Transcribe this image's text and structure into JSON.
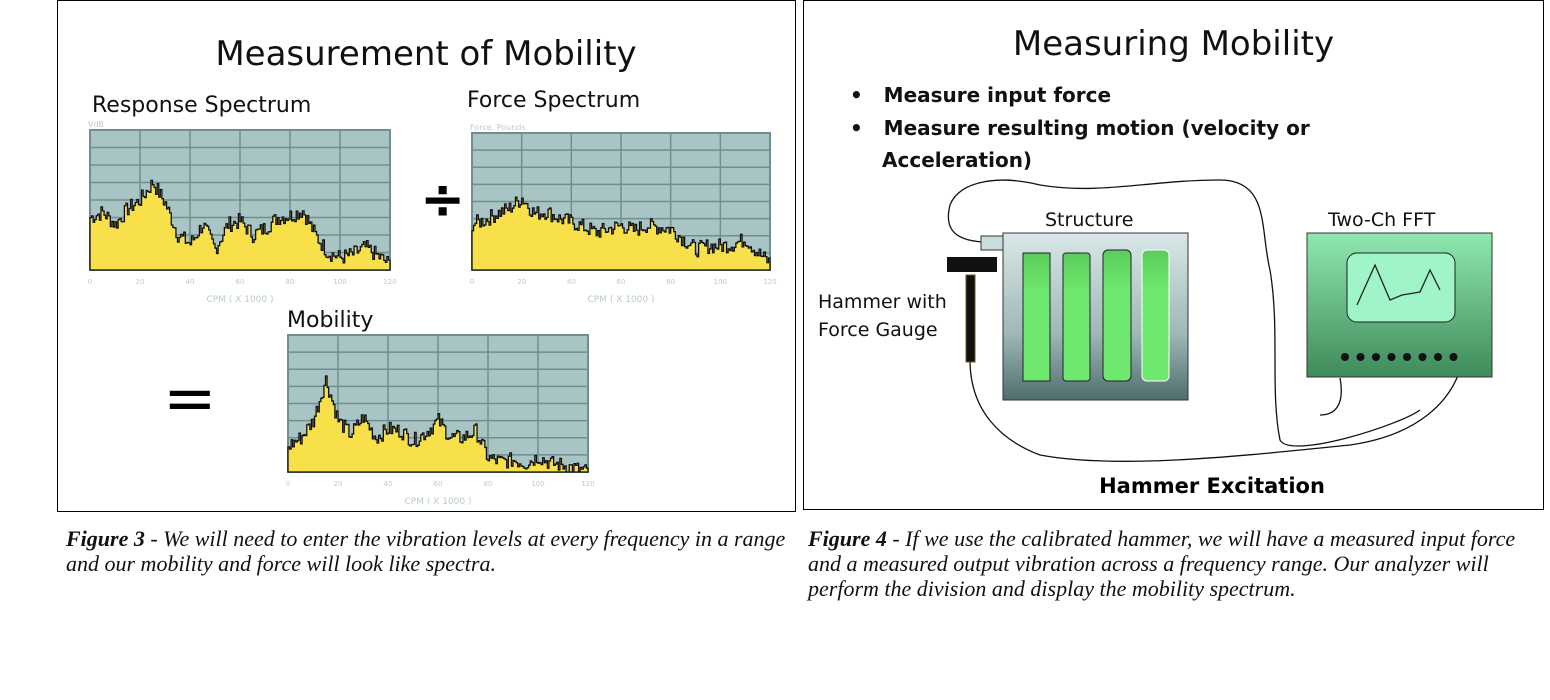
{
  "figure3": {
    "title": "Measurement of Mobility",
    "divide_symbol": "÷",
    "equals_symbol": "=",
    "caption_label": "Figure 3",
    "caption_text": " - We will need to enter the vibration levels at every frequency in a range and our mobility and force will look like spectra."
  },
  "figure4": {
    "title": "Measuring Mobility",
    "bullets": [
      "Measure input force",
      "Measure resulting motion (velocity or",
      "Acceleration)"
    ],
    "structure_label": "Structure",
    "fft_label": "Two-Ch FFT",
    "hammer_label_1": "Hammer with",
    "hammer_label_2": "Force Gauge",
    "footer": "Hammer Excitation",
    "caption_label": "Figure 4",
    "caption_text": " - If we use the calibrated hammer, we will have a measured input force and a measured output vibration across a frequency range.  Our analyzer will perform the division and display the mobility spectrum."
  },
  "colors": {
    "plot_bg": "#a9c4c4",
    "fill": "#f7e04a",
    "grid": "#6f8f8f"
  },
  "chart_data": [
    {
      "type": "area",
      "id": "response",
      "title": "Response Spectrum",
      "ylabel": "VdB",
      "xlabel": "CPM ( X 1000 )",
      "xlim": [
        0,
        120
      ],
      "ylim": [
        0,
        8
      ],
      "xticks": [
        "0",
        "20",
        "40",
        "60",
        "80",
        "100",
        "120"
      ],
      "x": [
        0,
        5,
        10,
        15,
        20,
        25,
        30,
        35,
        40,
        45,
        50,
        55,
        60,
        65,
        70,
        75,
        80,
        85,
        90,
        95,
        100,
        105,
        110,
        115,
        120
      ],
      "values": [
        3.0,
        3.3,
        2.6,
        3.5,
        4.0,
        5.0,
        3.8,
        2.0,
        1.5,
        2.6,
        1.2,
        2.6,
        2.8,
        2.0,
        2.4,
        3.0,
        3.1,
        3.4,
        2.0,
        1.0,
        0.7,
        0.9,
        1.3,
        0.8,
        0.3
      ]
    },
    {
      "type": "area",
      "id": "force",
      "title": "Force Spectrum",
      "ylabel": "Force, Pounds",
      "xlabel": "CPM ( X 1000 )",
      "xlim": [
        0,
        120
      ],
      "ylim": [
        0,
        8
      ],
      "xticks": [
        "0",
        "20",
        "40",
        "60",
        "80",
        "100",
        "120"
      ],
      "x": [
        0,
        5,
        10,
        15,
        20,
        25,
        30,
        35,
        40,
        45,
        50,
        55,
        60,
        65,
        70,
        75,
        80,
        85,
        90,
        95,
        100,
        105,
        110,
        115,
        120
      ],
      "values": [
        2.7,
        2.9,
        3.3,
        3.6,
        4.2,
        3.3,
        3.4,
        3.0,
        2.8,
        2.5,
        2.2,
        2.4,
        2.6,
        2.3,
        2.6,
        2.5,
        2.4,
        1.8,
        1.2,
        1.4,
        1.4,
        1.5,
        1.8,
        1.0,
        0.4
      ]
    },
    {
      "type": "area",
      "id": "mobility",
      "title": "Mobility",
      "ylabel": "",
      "xlabel": "CPM ( X 1000 )",
      "xlim": [
        0,
        120
      ],
      "ylim": [
        0,
        8
      ],
      "xticks": [
        "0",
        "20",
        "40",
        "60",
        "80",
        "100",
        "120"
      ],
      "x": [
        0,
        5,
        10,
        15,
        20,
        25,
        30,
        35,
        40,
        45,
        50,
        55,
        60,
        65,
        70,
        75,
        80,
        85,
        90,
        95,
        100,
        105,
        110,
        115,
        120
      ],
      "values": [
        1.5,
        2.0,
        3.0,
        5.4,
        3.0,
        2.2,
        3.2,
        2.0,
        2.5,
        2.4,
        1.8,
        2.3,
        3.0,
        2.0,
        2.0,
        2.4,
        0.8,
        0.6,
        0.7,
        0.5,
        0.9,
        0.5,
        0.4,
        0.2,
        0.0
      ]
    }
  ]
}
